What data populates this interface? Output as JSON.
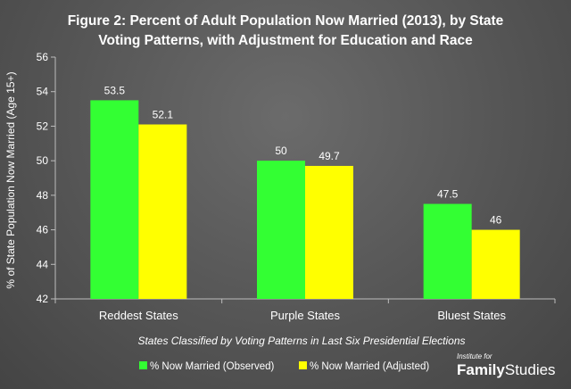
{
  "title_lines": [
    "Figure 2: Percent of Adult Population Now Married (2013), by State",
    "Voting Patterns, with Adjustment for Education and Race"
  ],
  "brand": {
    "small": "Institute for",
    "big_bold": "Family",
    "big_regular": "Studies"
  },
  "colors": {
    "observed": "#33ff33",
    "adjusted": "#ffff00",
    "axis": "#bdbdbd"
  },
  "chart_data": {
    "type": "bar",
    "title": "Figure 2: Percent of Adult Population Now Married (2013), by State Voting Patterns, with Adjustment for Education and Race",
    "categories": [
      "Reddest States",
      "Purple States",
      "Bluest States"
    ],
    "series": [
      {
        "name": "% Now Married (Observed)",
        "values": [
          53.5,
          50,
          47.5
        ],
        "labels": [
          "53.5",
          "50",
          "47.5"
        ]
      },
      {
        "name": "% Now Married (Adjusted)",
        "values": [
          52.1,
          49.7,
          46
        ],
        "labels": [
          "52.1",
          "49.7",
          "46"
        ]
      }
    ],
    "xlabel": "States Classified by Voting Patterns in Last Six Presidential Elections",
    "ylabel": "% of State Population Now Married (Age 15+)",
    "ylim": [
      42,
      56
    ],
    "yticks": [
      42,
      44,
      46,
      48,
      50,
      52,
      54,
      56
    ],
    "grid": false,
    "legend": "bottom"
  }
}
